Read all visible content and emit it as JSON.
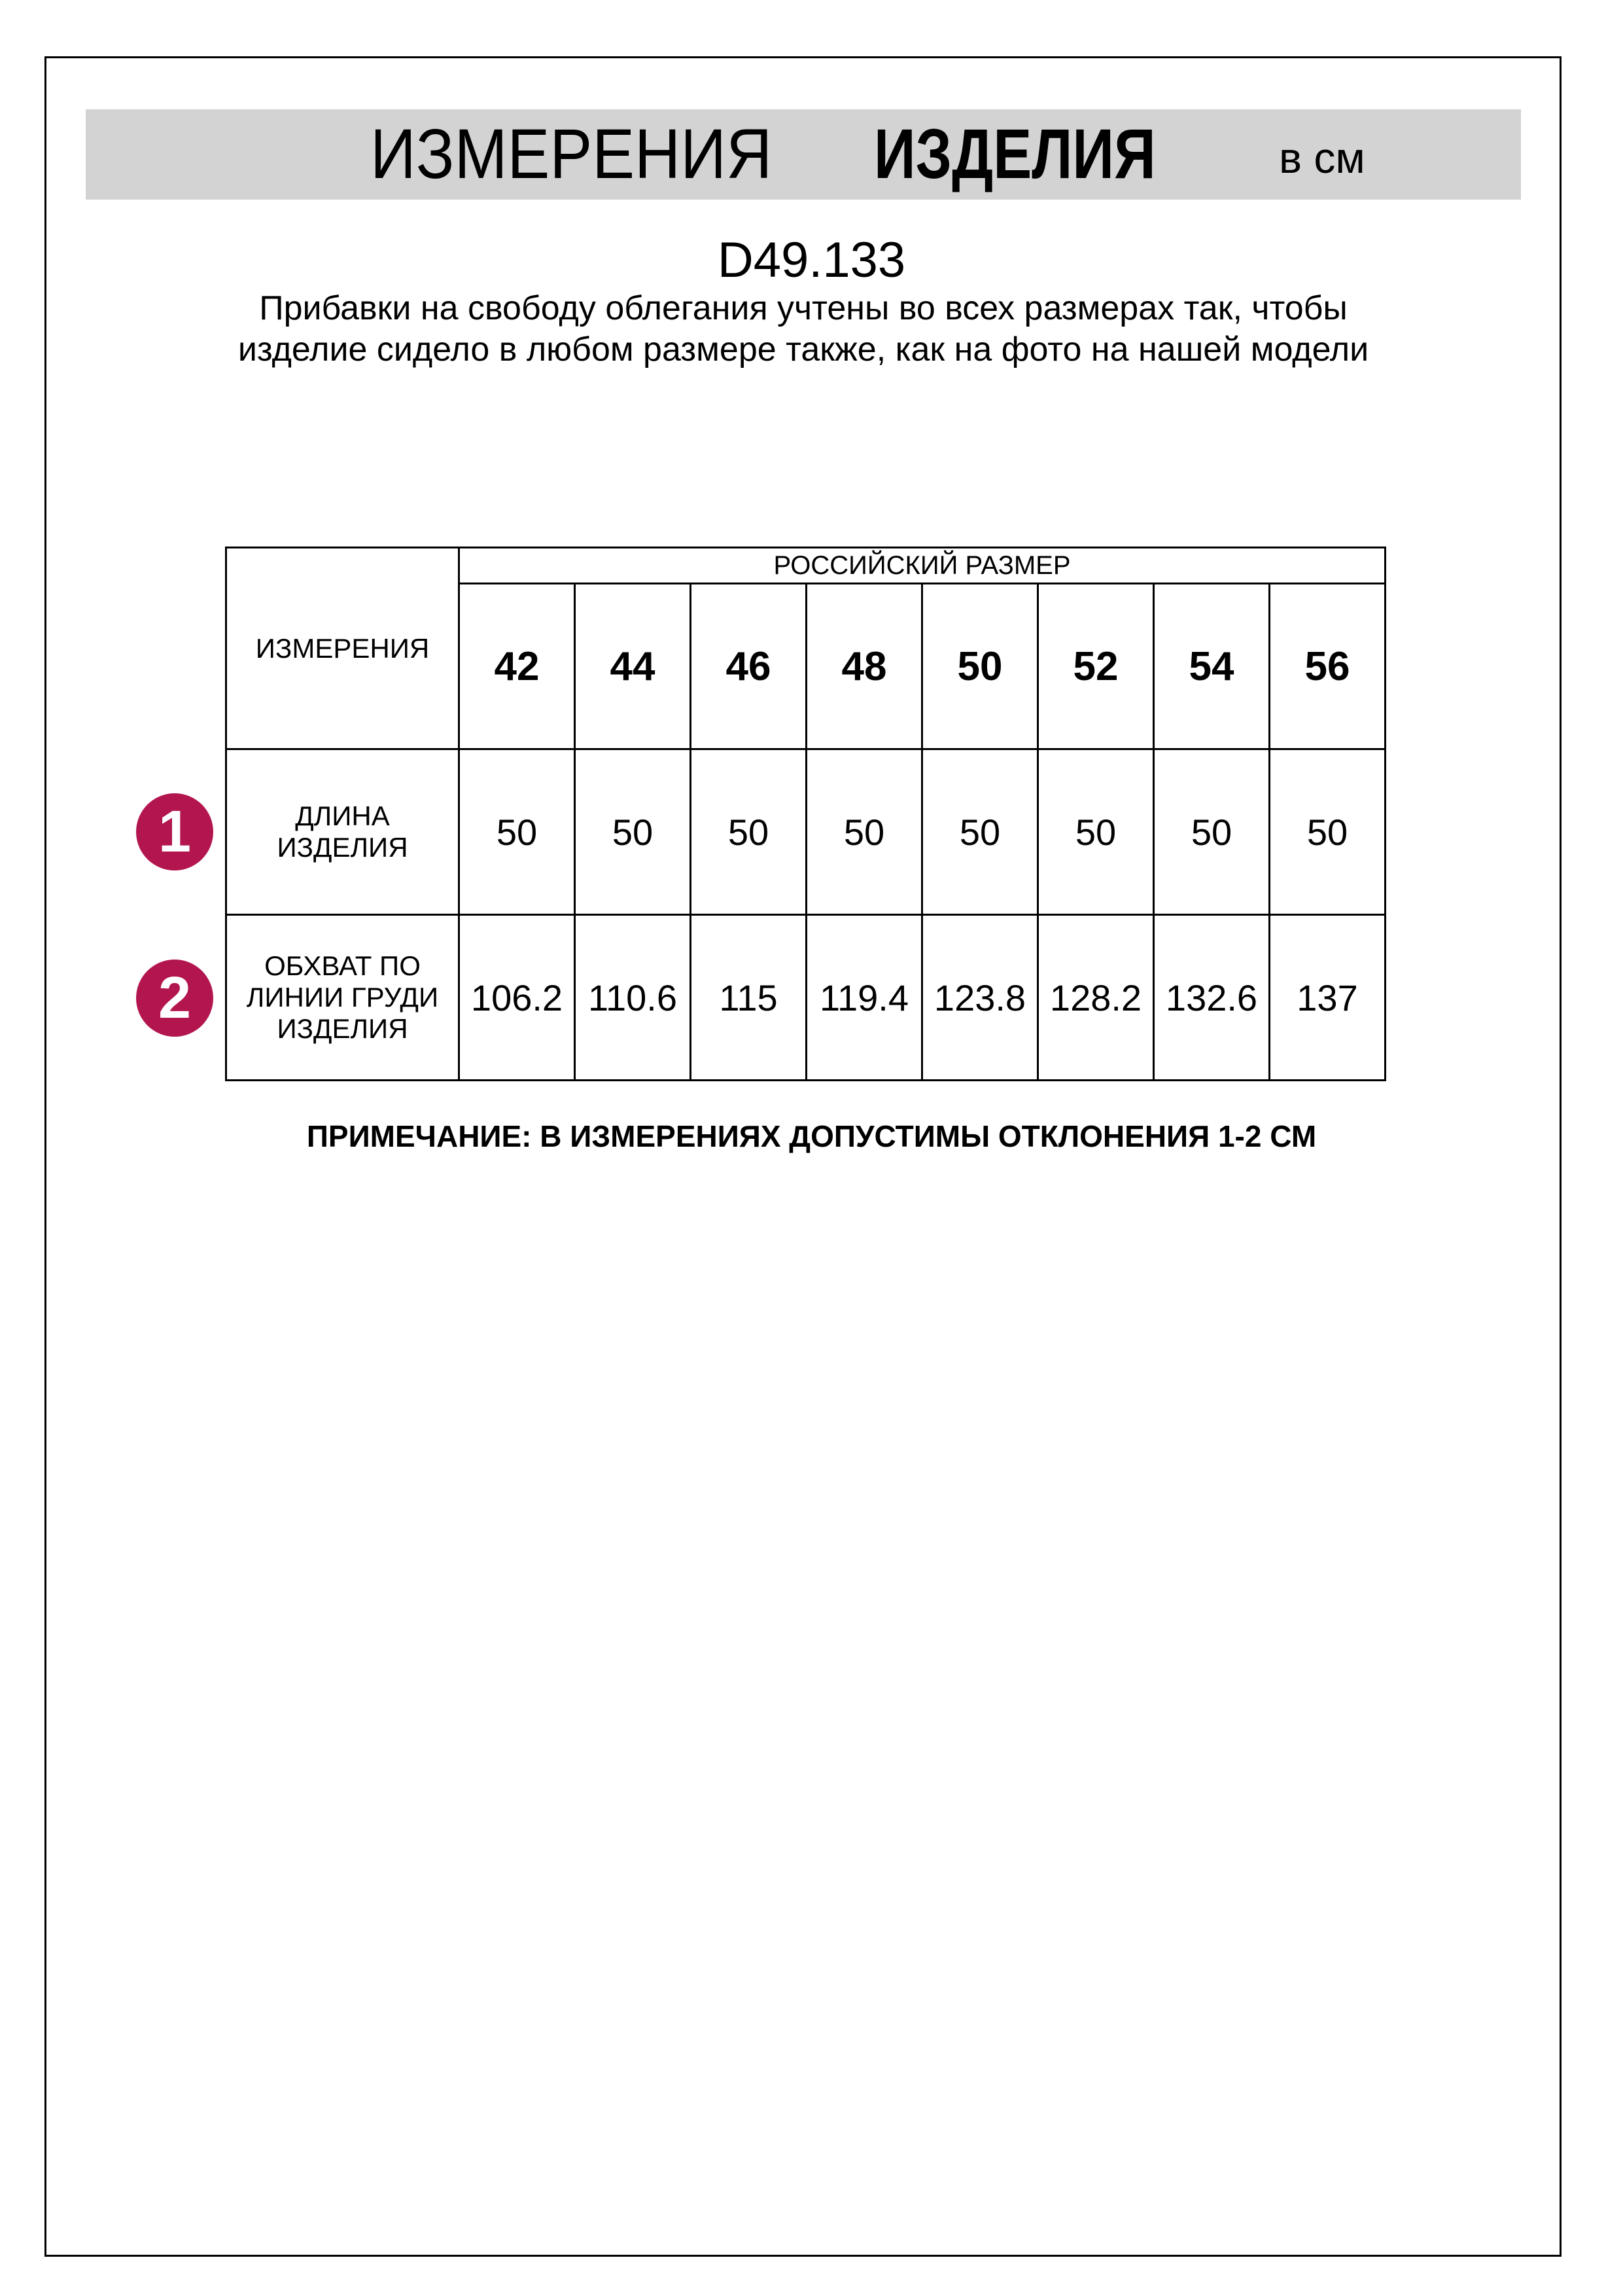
{
  "header": {
    "title_regular": "ИЗМЕРЕНИЯ",
    "title_bold": "ИЗДЕЛИЯ",
    "unit": "в см"
  },
  "product_code": "D49.133",
  "description": "Прибавки на свободу облегания учтены во всех размерах так, чтобы изделие сидело в любом размере также, как на фото на нашей модели",
  "table": {
    "corner_label": "ИЗМЕРЕНИЯ",
    "group_header": "РОССИЙСКИЙ РАЗМЕР",
    "sizes": [
      "42",
      "44",
      "46",
      "48",
      "50",
      "52",
      "54",
      "56"
    ],
    "rows": [
      {
        "number": "1",
        "label": "ДЛИНА ИЗДЕЛИЯ",
        "values": [
          "50",
          "50",
          "50",
          "50",
          "50",
          "50",
          "50",
          "50"
        ]
      },
      {
        "number": "2",
        "label": "ОБХВАТ ПО ЛИНИИ ГРУДИ ИЗДЕЛИЯ",
        "values": [
          "106.2",
          "110.6",
          "115",
          "119.4",
          "123.8",
          "128.2",
          "132.6",
          "137"
        ]
      }
    ],
    "marker_color": "#b3154f"
  },
  "note": "ПРИМЕЧАНИЕ: В ИЗМЕРЕНИЯХ ДОПУСТИМЫ ОТКЛОНЕНИЯ 1-2 СМ"
}
